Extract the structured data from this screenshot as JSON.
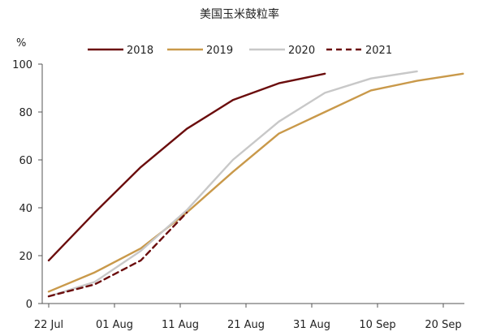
{
  "chart_data": {
    "type": "line",
    "title": "美国玉米鼓粒率",
    "y_unit": "%",
    "ylim": [
      0,
      100
    ],
    "y_ticks": [
      0,
      20,
      40,
      60,
      80,
      100
    ],
    "x_ticks": [
      {
        "label": "22 Jul",
        "day": 0
      },
      {
        "label": "01 Aug",
        "day": 10
      },
      {
        "label": "11 Aug",
        "day": 20
      },
      {
        "label": "21 Aug",
        "day": 30
      },
      {
        "label": "31 Aug",
        "day": 40
      },
      {
        "label": "10 Sep",
        "day": 50
      },
      {
        "label": "20 Sep",
        "day": 60
      }
    ],
    "grid": false,
    "legend_position": "top",
    "series": [
      {
        "name": "2018",
        "color": "#6b0d0d",
        "dash": "solid",
        "x": [
          0,
          7,
          14,
          21,
          28,
          35,
          42
        ],
        "y": [
          18,
          38,
          57,
          73,
          85,
          92,
          96
        ]
      },
      {
        "name": "2019",
        "color": "#c9994a",
        "dash": "solid",
        "x": [
          0,
          7,
          14,
          21,
          28,
          35,
          42,
          49,
          56,
          63
        ],
        "y": [
          5,
          13,
          23,
          38,
          55,
          71,
          80,
          89,
          93,
          96
        ]
      },
      {
        "name": "2020",
        "color": "#c8c8c8",
        "dash": "solid",
        "x": [
          0,
          7,
          14,
          21,
          28,
          35,
          42,
          49,
          56
        ],
        "y": [
          3,
          9,
          22,
          39,
          60,
          76,
          88,
          94,
          97
        ]
      },
      {
        "name": "2021",
        "color": "#6b0d0d",
        "dash": "dashed",
        "x": [
          0,
          7,
          14,
          21
        ],
        "y": [
          3,
          8,
          18,
          38
        ]
      }
    ]
  }
}
